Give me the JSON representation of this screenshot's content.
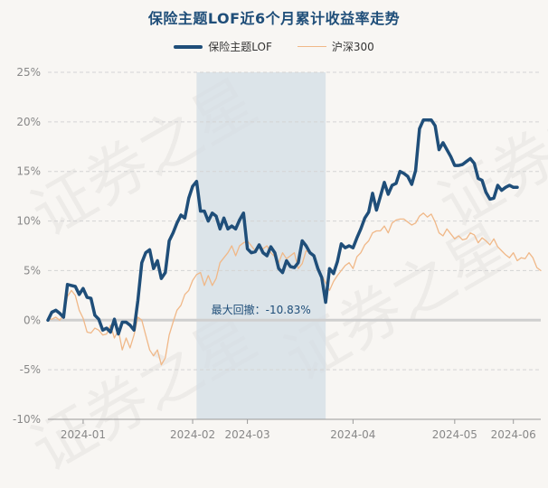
{
  "chart_data": {
    "type": "line",
    "title": "保险主题LOF近6个月累计收益率走势",
    "xlabel": "",
    "ylabel": "",
    "ylim": [
      -10,
      25
    ],
    "yticks": [
      -10,
      -5,
      0,
      5,
      10,
      15,
      20,
      25
    ],
    "ytick_labels": [
      "-10%",
      "-5%",
      "0%",
      "5%",
      "10%",
      "15%",
      "20%",
      "25%"
    ],
    "xlim": [
      0,
      126
    ],
    "xtick_positions": [
      9,
      37,
      51,
      78,
      104,
      119
    ],
    "xtick_labels": [
      "2024-01",
      "2024-02",
      "2024-03",
      "2024-04",
      "2024-05",
      "2024-06"
    ],
    "grid": "horizontal dashed",
    "legend": "top-center",
    "series": [
      {
        "name": "保险主题LOF",
        "color": "#1f4e79",
        "values": [
          0.0,
          0.8,
          1.0,
          0.7,
          0.3,
          3.6,
          3.5,
          3.4,
          2.6,
          3.2,
          2.3,
          2.2,
          0.5,
          0.1,
          -1.0,
          -0.8,
          -1.2,
          0.1,
          -1.4,
          -0.2,
          -0.2,
          -0.5,
          -1.0,
          2.0,
          5.8,
          6.8,
          7.1,
          5.2,
          6.0,
          4.2,
          4.8,
          8.0,
          8.8,
          9.8,
          10.6,
          10.3,
          12.3,
          13.5,
          14.0,
          11.0,
          11.0,
          10.0,
          10.8,
          10.5,
          9.2,
          10.3,
          9.2,
          9.5,
          9.2,
          10.1,
          10.8,
          7.2,
          6.8,
          6.9,
          7.6,
          6.8,
          6.5,
          7.4,
          6.8,
          5.2,
          4.8,
          6.0,
          5.4,
          5.3,
          5.8,
          8.0,
          7.5,
          6.8,
          6.5,
          5.2,
          4.3,
          1.8,
          5.2,
          4.7,
          5.9,
          7.7,
          7.3,
          7.5,
          7.3,
          8.3,
          9.2,
          10.3,
          10.9,
          12.8,
          11.1,
          12.5,
          13.9,
          12.7,
          13.6,
          13.8,
          15.0,
          14.8,
          14.5,
          13.7,
          15.1,
          19.3,
          20.2,
          20.2,
          20.2,
          19.6,
          17.2,
          17.9,
          17.2,
          16.5,
          15.6,
          15.6,
          15.7,
          16.0,
          16.3,
          15.8,
          14.3,
          14.1,
          12.9,
          12.2,
          12.3,
          13.6,
          13.1,
          13.4,
          13.6,
          13.4,
          13.4
        ],
        "line_width": "thick"
      },
      {
        "name": "沪深300",
        "color": "#f0b888",
        "values": [
          0.2,
          0.1,
          0.3,
          0.0,
          0.5,
          2.4,
          3.0,
          2.5,
          1.0,
          0.2,
          -1.2,
          -1.3,
          -0.8,
          -1.0,
          -1.5,
          -1.4,
          -0.5,
          -1.8,
          -1.0,
          -3.0,
          -1.8,
          -2.8,
          -1.5,
          0.3,
          0.0,
          -1.5,
          -3.0,
          -3.6,
          -3.0,
          -4.5,
          -3.8,
          -1.5,
          -0.2,
          1.0,
          1.5,
          2.6,
          3.0,
          4.0,
          4.6,
          4.8,
          3.5,
          4.5,
          3.5,
          4.2,
          5.8,
          6.3,
          6.8,
          7.5,
          6.5,
          7.5,
          7.8,
          8.0,
          7.5,
          7.0,
          7.4,
          7.2,
          7.5,
          6.8,
          6.4,
          5.8,
          6.8,
          6.2,
          6.5,
          6.8,
          5.2,
          5.7,
          7.0,
          6.8,
          6.5,
          5.5,
          4.5,
          3.8,
          3.0,
          3.9,
          4.5,
          5.0,
          5.5,
          5.8,
          5.2,
          6.4,
          6.8,
          7.6,
          8.0,
          8.8,
          9.0,
          9.0,
          9.5,
          8.8,
          9.8,
          10.1,
          10.2,
          10.2,
          9.9,
          9.6,
          9.8,
          10.5,
          10.8,
          10.4,
          10.7,
          9.9,
          8.8,
          8.5,
          9.2,
          8.7,
          8.2,
          8.5,
          8.1,
          8.2,
          8.8,
          8.6,
          7.8,
          8.3,
          8.0,
          7.6,
          8.2,
          7.4,
          7.0,
          6.6,
          6.3,
          6.8,
          6.0,
          6.3,
          6.2,
          6.8,
          6.3,
          5.3,
          5.0
        ],
        "line_width": "thin"
      }
    ],
    "shaded_region": {
      "x_start": 38,
      "x_end": 71,
      "label": "最大回撤：-10.83%"
    }
  },
  "watermark_text": "证券之星"
}
